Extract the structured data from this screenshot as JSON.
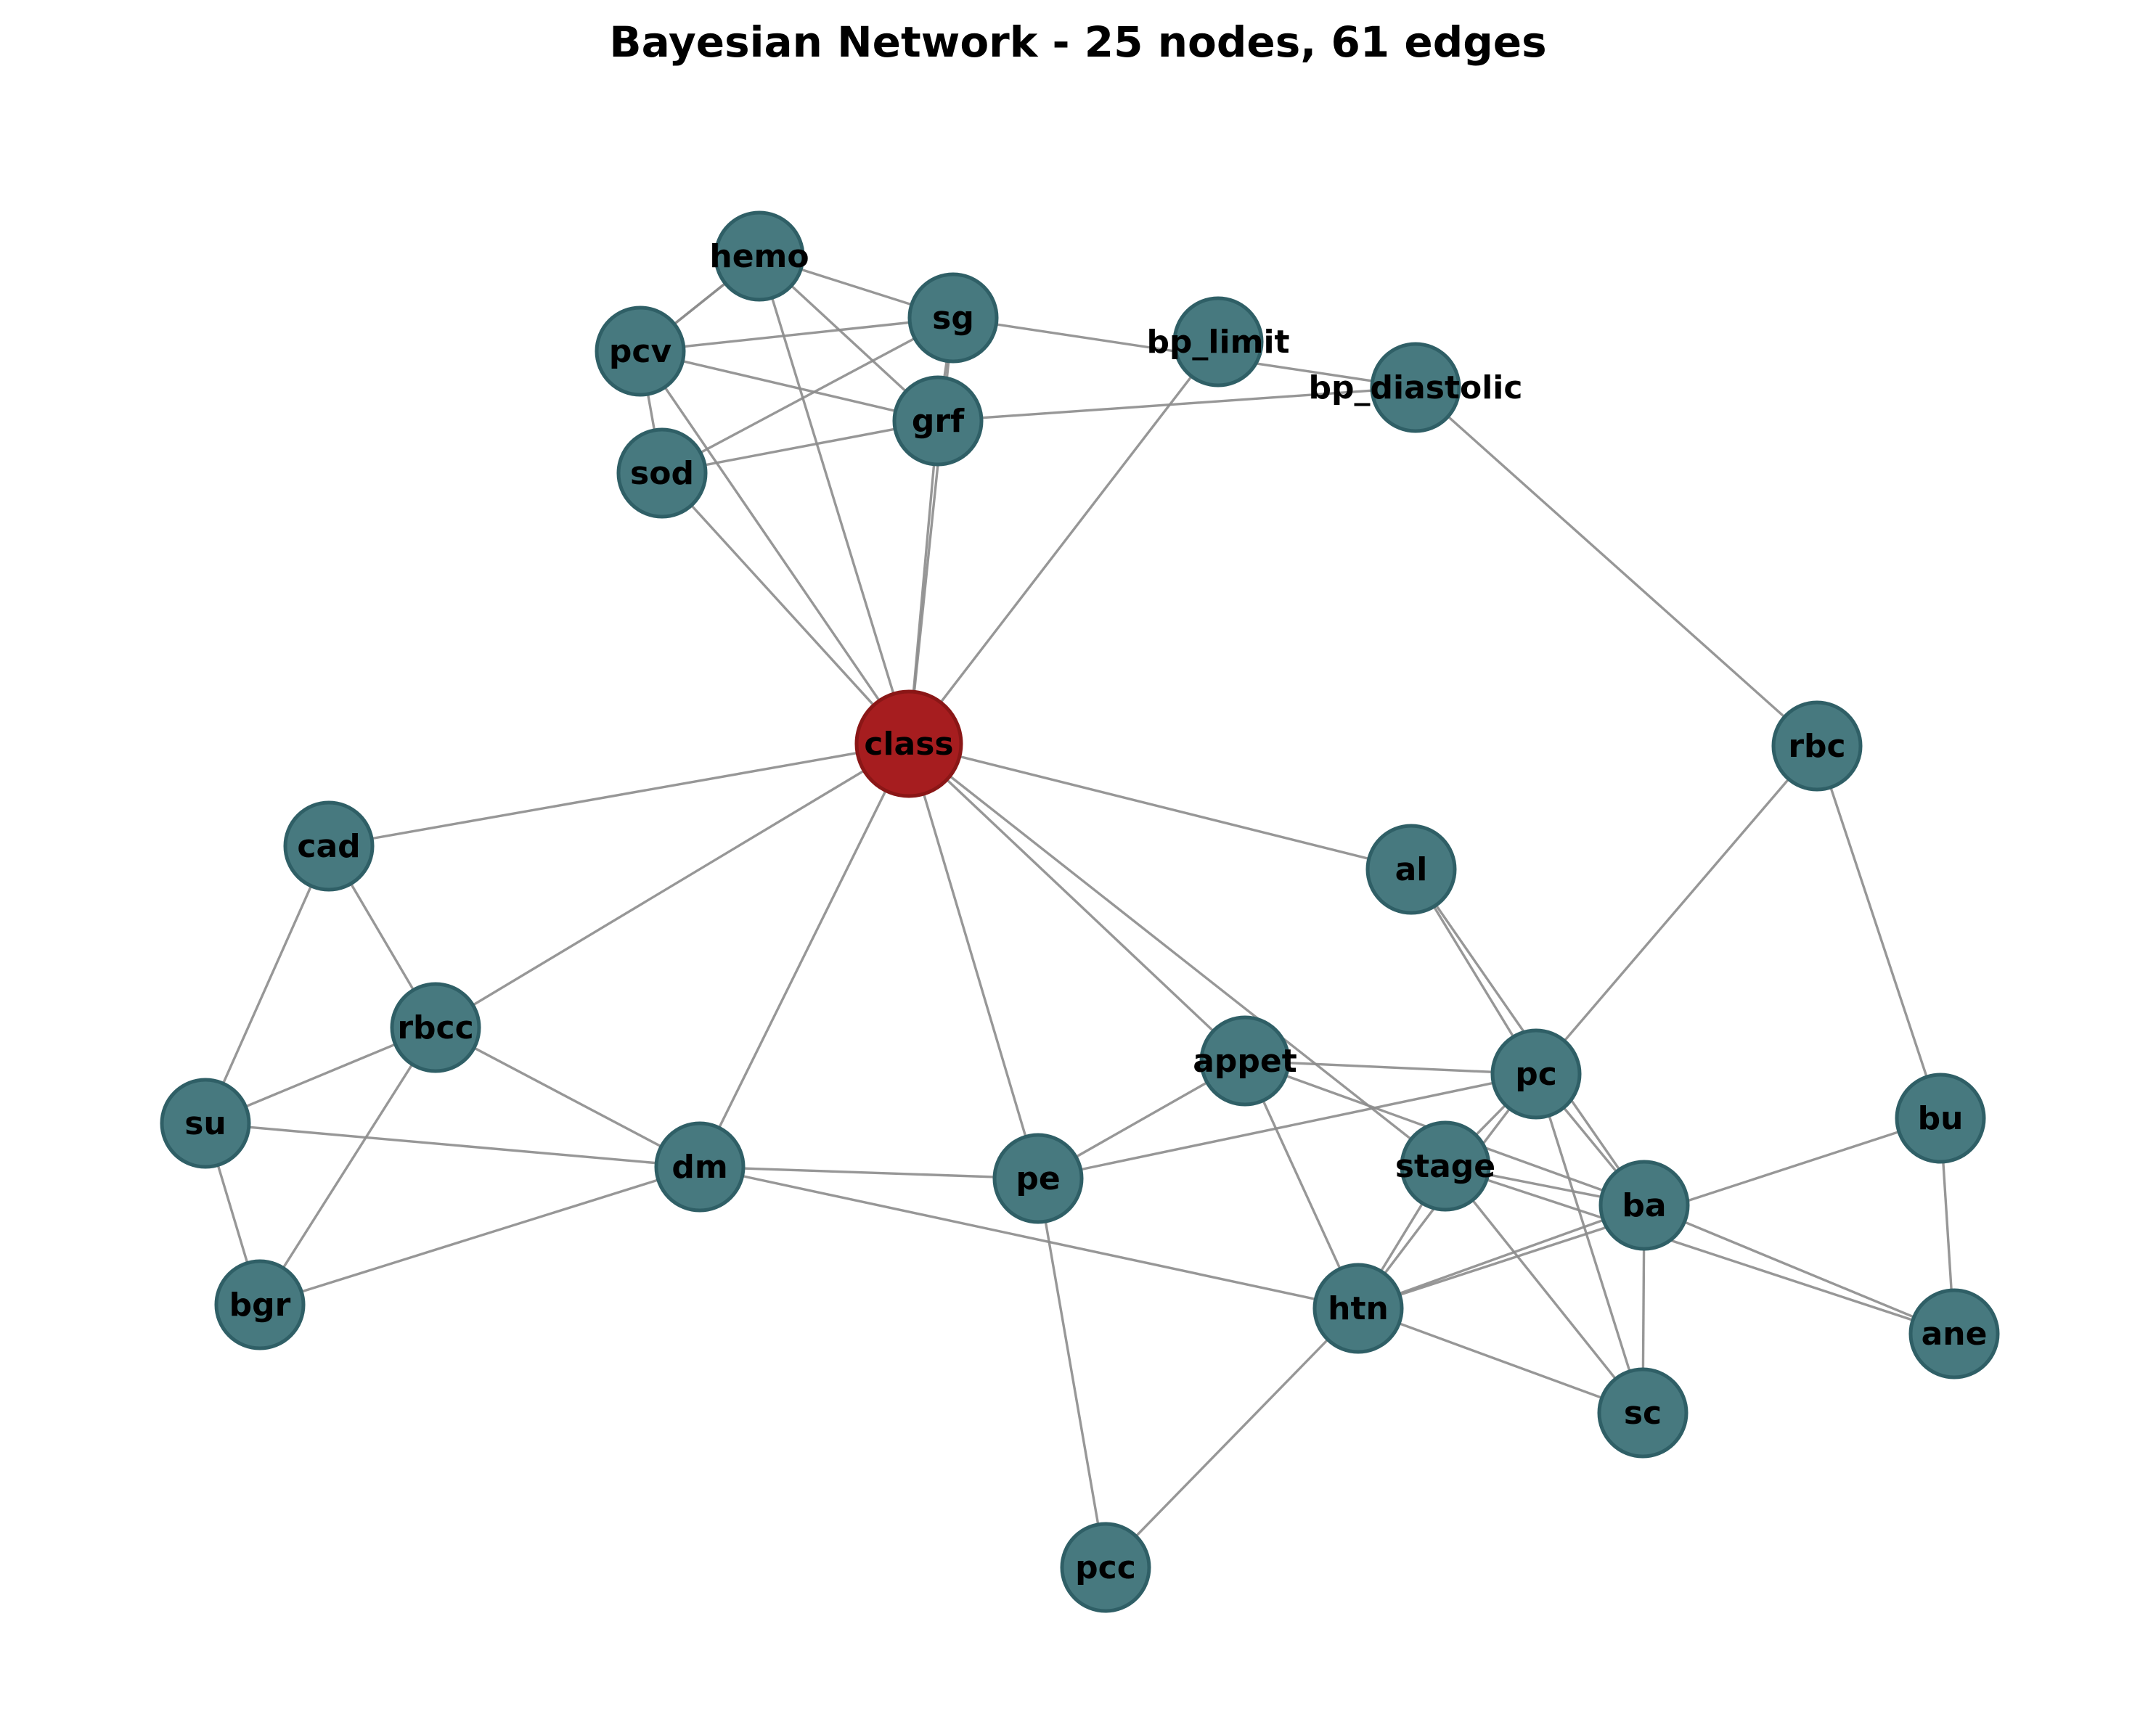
{
  "title": "Bayesian Network - 25 nodes, 61 edges",
  "colors": {
    "node_fill": "#47797f",
    "node_stroke": "#2f5f66",
    "target_fill": "#a61d1f",
    "target_stroke": "#8a1616",
    "edge": "#8c8c8c"
  },
  "nodes": [
    {
      "id": "class",
      "label": "class",
      "target": true
    },
    {
      "id": "hemo",
      "label": "hemo"
    },
    {
      "id": "sg",
      "label": "sg"
    },
    {
      "id": "pcv",
      "label": "pcv"
    },
    {
      "id": "grf",
      "label": "grf"
    },
    {
      "id": "sod",
      "label": "sod"
    },
    {
      "id": "bp_limit",
      "label": "bp_limit"
    },
    {
      "id": "bp_diastolic",
      "label": "bp_diastolic"
    },
    {
      "id": "rbc",
      "label": "rbc"
    },
    {
      "id": "cad",
      "label": "cad"
    },
    {
      "id": "al",
      "label": "al"
    },
    {
      "id": "rbcc",
      "label": "rbcc"
    },
    {
      "id": "appet",
      "label": "appet"
    },
    {
      "id": "pc",
      "label": "pc"
    },
    {
      "id": "su",
      "label": "su"
    },
    {
      "id": "bu",
      "label": "bu"
    },
    {
      "id": "dm",
      "label": "dm"
    },
    {
      "id": "pe",
      "label": "pe"
    },
    {
      "id": "stage",
      "label": "stage"
    },
    {
      "id": "ba",
      "label": "ba"
    },
    {
      "id": "bgr",
      "label": "bgr"
    },
    {
      "id": "htn",
      "label": "htn"
    },
    {
      "id": "ane",
      "label": "ane"
    },
    {
      "id": "sc",
      "label": "sc"
    },
    {
      "id": "pcc",
      "label": "pcc"
    }
  ],
  "edges": [
    [
      "hemo",
      "pcv"
    ],
    [
      "hemo",
      "sg"
    ],
    [
      "hemo",
      "grf"
    ],
    [
      "hemo",
      "class"
    ],
    [
      "pcv",
      "sg"
    ],
    [
      "pcv",
      "grf"
    ],
    [
      "pcv",
      "sod"
    ],
    [
      "pcv",
      "class"
    ],
    [
      "sg",
      "sod"
    ],
    [
      "sg",
      "bp_diastolic"
    ],
    [
      "sg",
      "class"
    ],
    [
      "grf",
      "sod"
    ],
    [
      "grf",
      "bp_diastolic"
    ],
    [
      "grf",
      "class"
    ],
    [
      "sod",
      "class"
    ],
    [
      "bp_limit",
      "class"
    ],
    [
      "bp_diastolic",
      "rbc"
    ],
    [
      "class",
      "cad"
    ],
    [
      "class",
      "rbcc"
    ],
    [
      "class",
      "dm"
    ],
    [
      "class",
      "pe"
    ],
    [
      "class",
      "appet"
    ],
    [
      "class",
      "stage"
    ],
    [
      "class",
      "al"
    ],
    [
      "cad",
      "rbcc"
    ],
    [
      "cad",
      "su"
    ],
    [
      "rbcc",
      "su"
    ],
    [
      "rbcc",
      "bgr"
    ],
    [
      "rbcc",
      "dm"
    ],
    [
      "su",
      "bgr"
    ],
    [
      "su",
      "dm"
    ],
    [
      "dm",
      "bgr"
    ],
    [
      "dm",
      "pe"
    ],
    [
      "dm",
      "htn"
    ],
    [
      "pe",
      "appet"
    ],
    [
      "pe",
      "pc"
    ],
    [
      "pe",
      "pcc"
    ],
    [
      "appet",
      "pc"
    ],
    [
      "appet",
      "ba"
    ],
    [
      "appet",
      "htn"
    ],
    [
      "al",
      "ba"
    ],
    [
      "al",
      "pc"
    ],
    [
      "rbc",
      "pc"
    ],
    [
      "rbc",
      "bu"
    ],
    [
      "pc",
      "stage"
    ],
    [
      "pc",
      "ba"
    ],
    [
      "pc",
      "sc"
    ],
    [
      "pc",
      "htn"
    ],
    [
      "stage",
      "ba"
    ],
    [
      "stage",
      "ane"
    ],
    [
      "stage",
      "htn"
    ],
    [
      "stage",
      "sc"
    ],
    [
      "ba",
      "htn"
    ],
    [
      "ba",
      "sc"
    ],
    [
      "ba",
      "ane"
    ],
    [
      "bu",
      "htn"
    ],
    [
      "bu",
      "ane"
    ],
    [
      "htn",
      "sc"
    ],
    [
      "htn",
      "pcc"
    ],
    [
      "sg",
      "grf"
    ],
    [
      "pcv",
      "hemo"
    ]
  ]
}
